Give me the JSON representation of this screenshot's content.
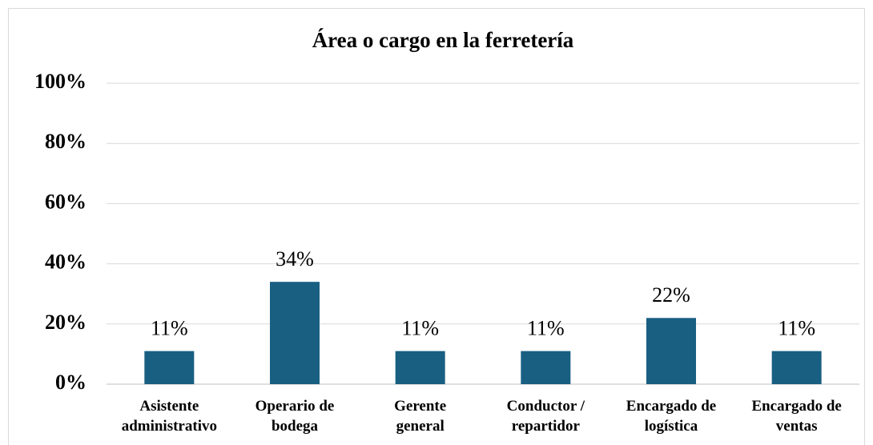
{
  "chart_data": {
    "type": "bar",
    "title": "Área o cargo en la ferretería",
    "categories": [
      "Asistente\nadministrativo",
      "Operario de\nbodega",
      "Gerente\ngeneral",
      "Conductor /\nrepartidor",
      "Encargado de\nlogística",
      "Encargado de\nventas"
    ],
    "values": [
      11,
      34,
      11,
      11,
      22,
      11
    ],
    "value_labels": [
      "11%",
      "34%",
      "11%",
      "11%",
      "22%",
      "11%"
    ],
    "color": "#185f82",
    "ylim": [
      0,
      100
    ],
    "yticks": [
      {
        "value": 0,
        "label": "0%"
      },
      {
        "value": 20,
        "label": "20%"
      },
      {
        "value": 40,
        "label": "40%"
      },
      {
        "value": 60,
        "label": "60%"
      },
      {
        "value": 80,
        "label": "80%"
      },
      {
        "value": 100,
        "label": "100%"
      }
    ],
    "grid": true
  }
}
